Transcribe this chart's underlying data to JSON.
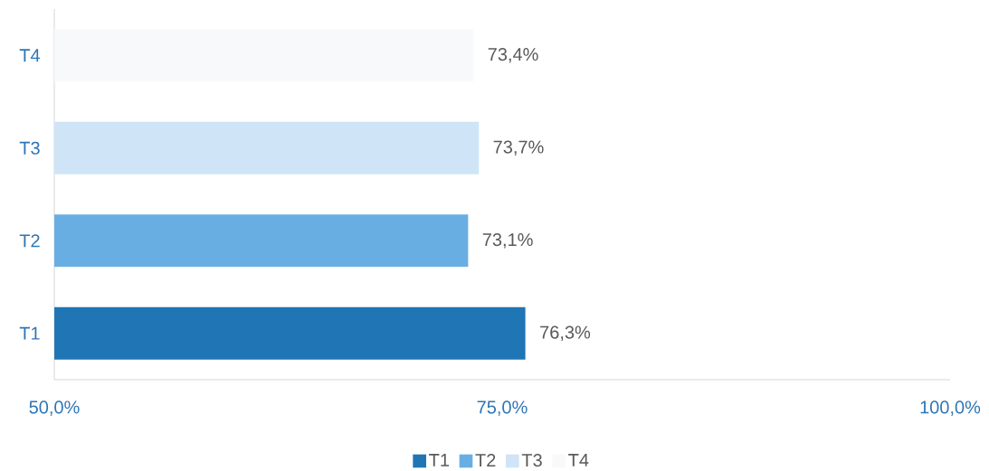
{
  "chart_data": {
    "type": "bar",
    "orientation": "horizontal",
    "categories": [
      "T4",
      "T3",
      "T2",
      "T1"
    ],
    "series": [
      {
        "name": "T1",
        "color": "#2075b5",
        "values": [
          null,
          null,
          null,
          76.3
        ],
        "value_labels": [
          null,
          null,
          null,
          "76,3%"
        ]
      },
      {
        "name": "T2",
        "color": "#69aee3",
        "values": [
          null,
          null,
          73.1,
          null
        ],
        "value_labels": [
          null,
          null,
          "73,1%",
          null
        ]
      },
      {
        "name": "T3",
        "color": "#cfe4f7",
        "values": [
          null,
          73.7,
          null,
          null
        ],
        "value_labels": [
          null,
          "73,7%",
          null,
          null
        ]
      },
      {
        "name": "T4",
        "color": "#f8f9fb",
        "values": [
          73.4,
          null,
          null,
          null
        ],
        "value_labels": [
          "73,4%",
          null,
          null,
          null
        ]
      }
    ],
    "xlim": [
      50,
      100
    ],
    "xticks": [
      {
        "value": 50,
        "label": "50,0%"
      },
      {
        "value": 75,
        "label": "75,0%"
      },
      {
        "value": 100,
        "label": "100,0%"
      }
    ],
    "legend": "bottom",
    "grid": false
  }
}
